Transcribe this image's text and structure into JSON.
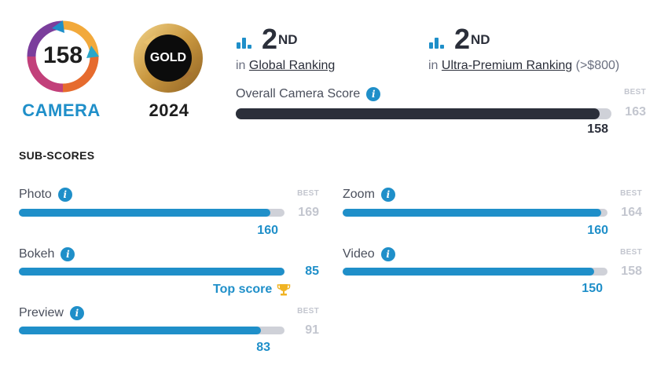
{
  "badges": {
    "camera": {
      "score": "158",
      "label": "CAMERA"
    },
    "award": {
      "label": "GOLD",
      "year": "2024"
    }
  },
  "rankings": [
    {
      "position": "2",
      "suffix": "ND",
      "prefix": "in",
      "link": "Global Ranking",
      "extra": ""
    },
    {
      "position": "2",
      "suffix": "ND",
      "prefix": "in",
      "link": "Ultra-Premium Ranking",
      "extra": "(>$800)"
    }
  ],
  "overall": {
    "label": "Overall Camera Score",
    "best_label": "BEST",
    "best": "163",
    "score": "158",
    "fraction": 0.969
  },
  "subscores": {
    "title": "SUB-SCORES",
    "best_label": "BEST",
    "top_score_label": "Top score",
    "items": {
      "photo": {
        "label": "Photo",
        "score": "160",
        "best": "169",
        "fraction": 0.947
      },
      "zoom": {
        "label": "Zoom",
        "score": "160",
        "best": "164",
        "fraction": 0.976
      },
      "bokeh": {
        "label": "Bokeh",
        "score": "85",
        "best": "",
        "fraction": 1.0
      },
      "video": {
        "label": "Video",
        "score": "150",
        "best": "158",
        "fraction": 0.949
      },
      "preview": {
        "label": "Preview",
        "score": "83",
        "best": "91",
        "fraction": 0.912
      }
    }
  },
  "colors": {
    "accent": "#1f8fc9",
    "dark": "#2b2f3a",
    "track": "#cfd1d8",
    "gold": "#c8963e",
    "trophy": "#f0b323"
  },
  "icons": [
    "ranking-bars-icon",
    "info-icon",
    "trophy-icon"
  ]
}
